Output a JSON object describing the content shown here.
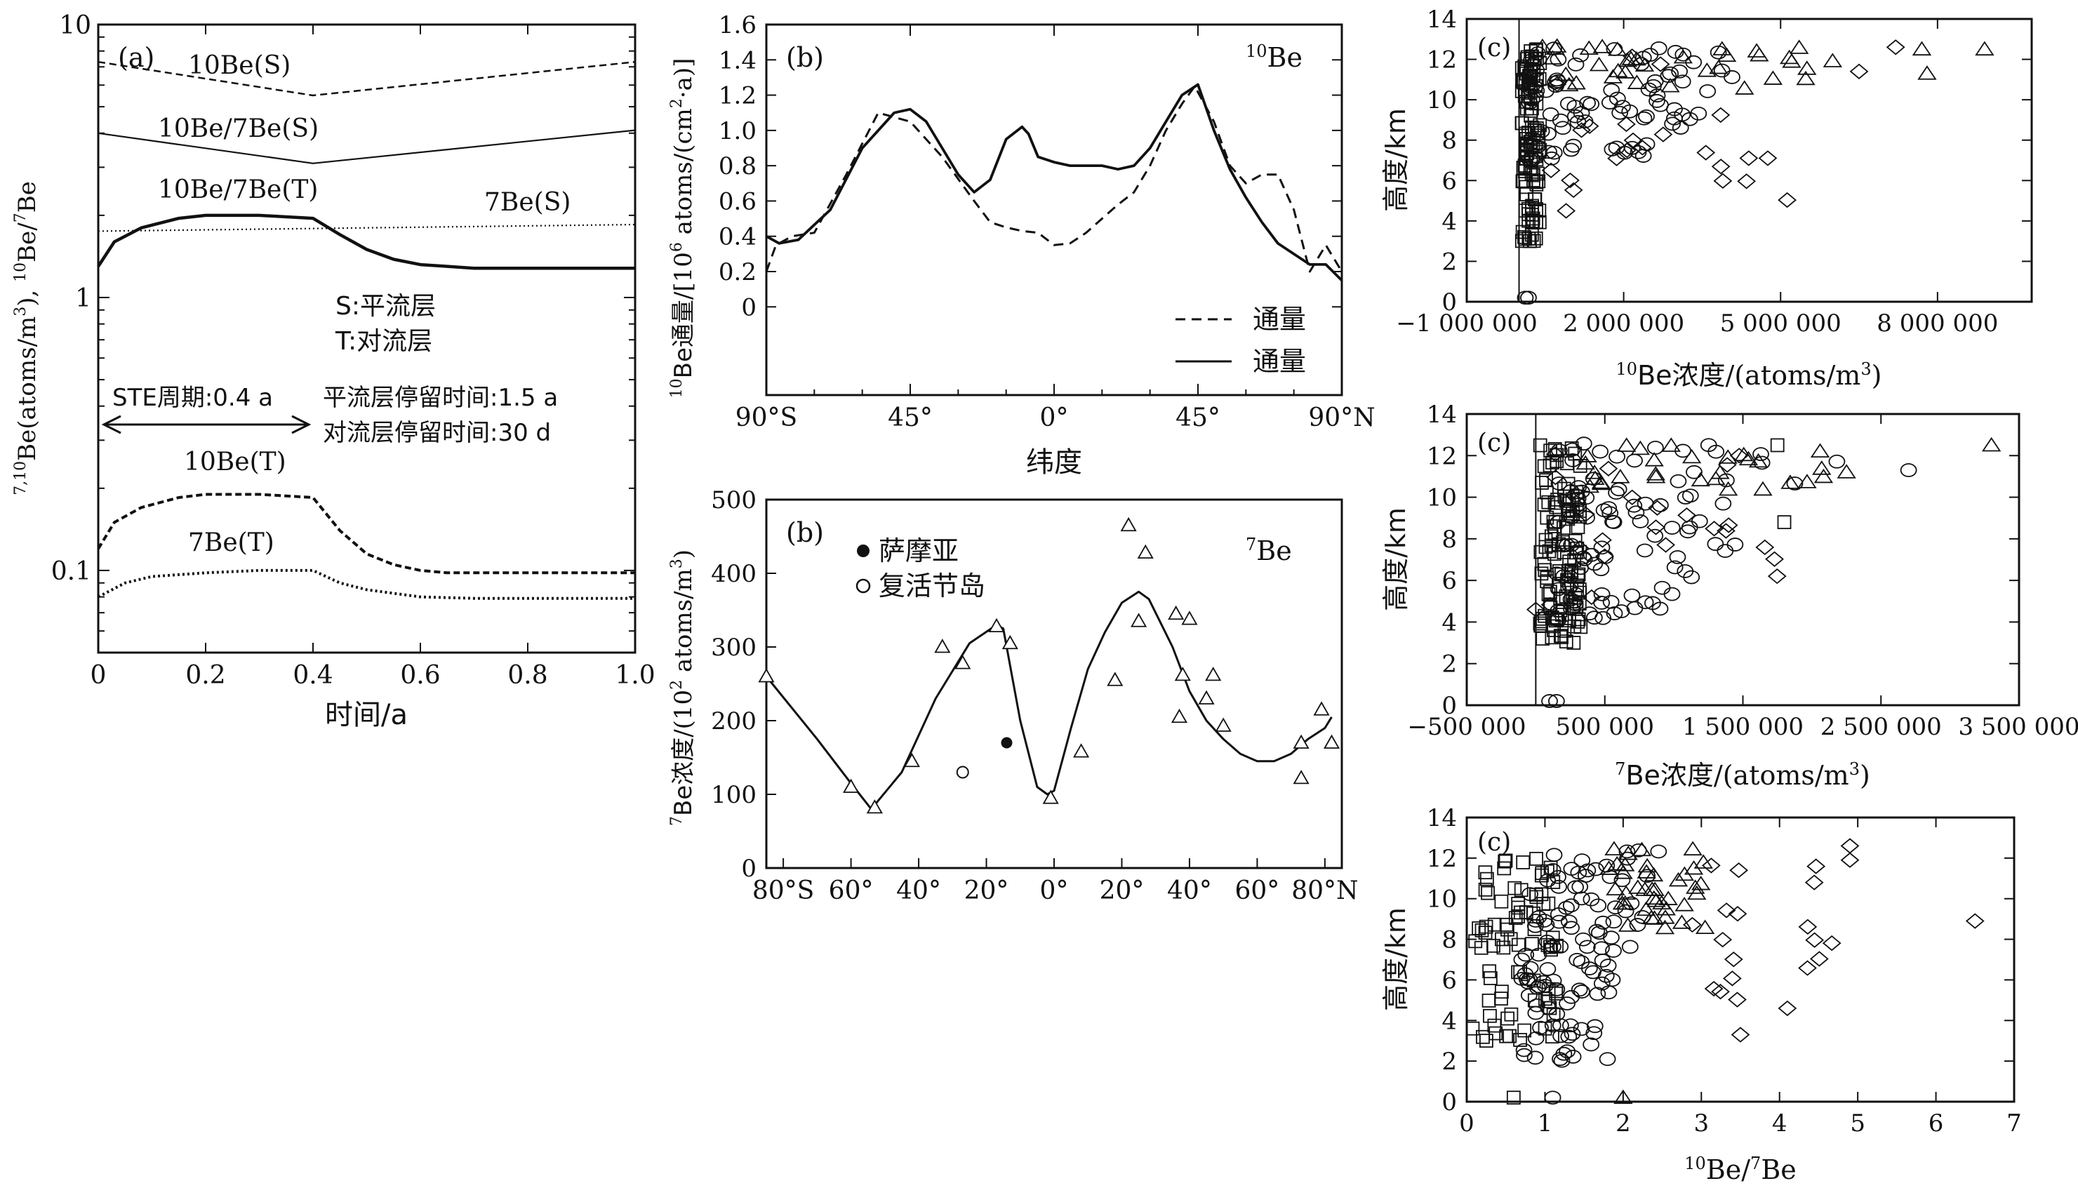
{
  "chart_data": [
    {
      "id": "a",
      "type": "line",
      "panel_label": "(a)",
      "xlabel": "时间/a",
      "ylabel": "7,10Be(atoms/m3), 10Be/7Be",
      "yscale": "log",
      "xlim": [
        0,
        1.0
      ],
      "ylim": [
        0.05,
        10
      ],
      "xticks": [
        "0",
        "0.2",
        "0.4",
        "0.6",
        "0.8",
        "1.0"
      ],
      "yticks": [
        "0.1",
        "1",
        "10"
      ],
      "series": [
        {
          "name": "10Be(S)",
          "style": "dashed",
          "x": [
            0,
            0.4,
            1.0
          ],
          "y": [
            7.3,
            5.5,
            7.3
          ]
        },
        {
          "name": "10Be/7Be(S)",
          "style": "solid-thin",
          "x": [
            0,
            0.4,
            1.0
          ],
          "y": [
            4.0,
            3.1,
            4.1
          ]
        },
        {
          "name": "7Be(S)",
          "style": "dotted",
          "x": [
            0,
            1.0
          ],
          "y": [
            1.75,
            1.85
          ]
        },
        {
          "name": "10Be/7Be(T)",
          "style": "solid-thick",
          "x": [
            0,
            0.03,
            0.08,
            0.15,
            0.2,
            0.3,
            0.4,
            0.45,
            0.5,
            0.55,
            0.6,
            0.65,
            0.7,
            0.8,
            1.0
          ],
          "y": [
            1.3,
            1.6,
            1.8,
            1.95,
            2.0,
            2.0,
            1.95,
            1.7,
            1.5,
            1.38,
            1.32,
            1.3,
            1.28,
            1.28,
            1.28
          ]
        },
        {
          "name": "10Be(T)",
          "style": "dashed-thick",
          "x": [
            0,
            0.03,
            0.08,
            0.15,
            0.2,
            0.3,
            0.4,
            0.45,
            0.5,
            0.55,
            0.6,
            0.65,
            0.7,
            0.8,
            1.0
          ],
          "y": [
            0.12,
            0.15,
            0.17,
            0.185,
            0.19,
            0.19,
            0.185,
            0.14,
            0.115,
            0.105,
            0.1,
            0.098,
            0.098,
            0.098,
            0.098
          ]
        },
        {
          "name": "7Be(T)",
          "style": "dotted-thick",
          "x": [
            0,
            0.05,
            0.1,
            0.2,
            0.3,
            0.4,
            0.45,
            0.5,
            0.6,
            0.7,
            0.8,
            1.0
          ],
          "y": [
            0.08,
            0.09,
            0.095,
            0.098,
            0.1,
            0.1,
            0.09,
            0.085,
            0.08,
            0.079,
            0.079,
            0.079
          ]
        }
      ],
      "annotations": {
        "legend_s": "S:平流层",
        "legend_t": "T:对流层",
        "ste": "STE周期:0.4 a",
        "strat_residence": "平流层停留时间:1.5 a",
        "trop_residence": "对流层停留时间:30 d",
        "label_10be_s": "10Be(S)",
        "label_ratio_s": "10Be/7Be(S)",
        "label_ratio_t": "10Be/7Be(T)",
        "label_7be_s": "7Be(S)",
        "label_10be_t": "10Be(T)",
        "label_7be_t": "7Be(T)"
      }
    },
    {
      "id": "b_top",
      "type": "line",
      "panel_label": "(b)",
      "tag": "10Be",
      "xlabel": "纬度",
      "ylabel": "10Be通量/[106 atoms/(cm2·a)]",
      "xlim": [
        -90,
        90
      ],
      "ylim": [
        -0.5,
        1.6
      ],
      "xticks": [
        "90°S",
        "45°",
        "0°",
        "45°",
        "90°N"
      ],
      "yticks": [
        "0",
        "0.2",
        "0.4",
        "0.6",
        "0.8",
        "1.0",
        "1.2",
        "1.4",
        "1.6"
      ],
      "series": [
        {
          "name": "通量",
          "style": "dashed",
          "x": [
            -90,
            -87,
            -82,
            -75,
            -65,
            -55,
            -45,
            -35,
            -25,
            -20,
            -15,
            -10,
            -5,
            0,
            5,
            10,
            15,
            20,
            25,
            30,
            35,
            40,
            44,
            50,
            55,
            60,
            65,
            70,
            75,
            80,
            85,
            90
          ],
          "y": [
            0.2,
            0.35,
            0.4,
            0.42,
            0.75,
            1.1,
            1.05,
            0.85,
            0.6,
            0.48,
            0.45,
            0.43,
            0.42,
            0.35,
            0.36,
            0.42,
            0.5,
            0.58,
            0.65,
            0.8,
            1.0,
            1.15,
            1.25,
            1.05,
            0.8,
            0.7,
            0.75,
            0.75,
            0.55,
            0.2,
            0.35,
            0.2
          ]
        },
        {
          "name": "通量",
          "style": "solid",
          "x": [
            -90,
            -86,
            -80,
            -70,
            -60,
            -50,
            -45,
            -40,
            -30,
            -25,
            -20,
            -15,
            -10,
            -8,
            -5,
            0,
            5,
            10,
            15,
            20,
            25,
            30,
            35,
            40,
            45,
            50,
            55,
            60,
            65,
            70,
            75,
            80,
            85,
            90
          ],
          "y": [
            0.4,
            0.36,
            0.38,
            0.55,
            0.9,
            1.1,
            1.12,
            1.05,
            0.75,
            0.65,
            0.72,
            0.95,
            1.02,
            0.98,
            0.85,
            0.82,
            0.8,
            0.8,
            0.8,
            0.78,
            0.8,
            0.9,
            1.05,
            1.2,
            1.26,
            1.0,
            0.78,
            0.62,
            0.48,
            0.36,
            0.3,
            0.24,
            0.24,
            0.15
          ]
        }
      ]
    },
    {
      "id": "b_bottom",
      "type": "scatter",
      "panel_label": "(b)",
      "tag": "7Be",
      "xlabel": "",
      "ylabel": "7Be浓度/(102 atoms/m3)",
      "xlim": [
        -85,
        85
      ],
      "ylim": [
        0,
        500
      ],
      "xticks": [
        "80°S",
        "60°",
        "40°",
        "20°",
        "0°",
        "20°",
        "40°",
        "60°",
        "80°N"
      ],
      "yticks": [
        "0",
        "100",
        "200",
        "300",
        "400",
        "500"
      ],
      "legend": [
        {
          "name": "萨摩亚",
          "marker": "filled-circle"
        },
        {
          "name": "复活节岛",
          "marker": "open-circle"
        }
      ],
      "fit_line": {
        "x": [
          -85,
          -70,
          -60,
          -54,
          -45,
          -35,
          -25,
          -17,
          -15,
          -10,
          -5,
          -2,
          0,
          5,
          10,
          15,
          20,
          25,
          28,
          35,
          40,
          45,
          50,
          55,
          60,
          65,
          70,
          75,
          80,
          82
        ],
        "y": [
          260,
          175,
          115,
          80,
          130,
          230,
          305,
          330,
          325,
          200,
          110,
          100,
          105,
          190,
          270,
          320,
          360,
          375,
          365,
          300,
          240,
          200,
          175,
          155,
          145,
          145,
          155,
          175,
          190,
          205
        ]
      },
      "series": [
        {
          "name": "triangles",
          "marker": "triangle",
          "x": [
            -85,
            -60,
            -53,
            -42,
            -33,
            -27,
            -17,
            -13,
            -1,
            8,
            18,
            22,
            25,
            27,
            36,
            37,
            38,
            40,
            45,
            47,
            50,
            73,
            73,
            79,
            82
          ],
          "y": [
            260,
            110,
            82,
            145,
            300,
            278,
            328,
            305,
            95,
            158,
            255,
            465,
            335,
            428,
            345,
            205,
            262,
            338,
            230,
            262,
            193,
            122,
            170,
            215,
            170
          ]
        },
        {
          "name": "萨摩亚",
          "marker": "filled-circle",
          "x": [
            -14
          ],
          "y": [
            170
          ]
        },
        {
          "name": "复活节岛",
          "marker": "open-circle",
          "x": [
            -27
          ],
          "y": [
            130
          ]
        }
      ]
    },
    {
      "id": "c1",
      "type": "scatter",
      "panel_label": "(c)",
      "xlabel": "10Be浓度/(atoms/m3)",
      "ylabel": "高度/km",
      "xlim": [
        -1000000,
        9800000
      ],
      "ylim": [
        0,
        14
      ],
      "xtick_values": [
        -1000000,
        2000000,
        5000000,
        8000000
      ],
      "xticks": [
        "−1 000 000",
        "2 000 000",
        "5 000 000",
        "8 000 000"
      ],
      "yticks": [
        "0",
        "2",
        "4",
        "6",
        "8",
        "10",
        "12",
        "14"
      ]
    },
    {
      "id": "c2",
      "type": "scatter",
      "panel_label": "(c)",
      "xlabel": "7Be浓度/(atoms/m3)",
      "ylabel": "高度/km",
      "xlim": [
        -500000,
        3500000
      ],
      "ylim": [
        0,
        14
      ],
      "xtick_values": [
        -500000,
        500000,
        1500000,
        2500000,
        3500000
      ],
      "xticks": [
        "−500 000",
        "500 000",
        "1 500 000",
        "2 500 000",
        "3 500 000"
      ],
      "yticks": [
        "0",
        "2",
        "4",
        "6",
        "8",
        "10",
        "12",
        "14"
      ]
    },
    {
      "id": "c3",
      "type": "scatter",
      "panel_label": "(c)",
      "xlabel": "10Be/7Be",
      "ylabel": "高度/km",
      "xlim": [
        0,
        7
      ],
      "ylim": [
        0,
        14
      ],
      "xtick_values": [
        0,
        1,
        2,
        3,
        4,
        5,
        6,
        7
      ],
      "xticks": [
        "0",
        "1",
        "2",
        "3",
        "4",
        "5",
        "6",
        "7"
      ],
      "yticks": [
        "0",
        "2",
        "4",
        "6",
        "8",
        "10",
        "12",
        "14"
      ]
    }
  ]
}
